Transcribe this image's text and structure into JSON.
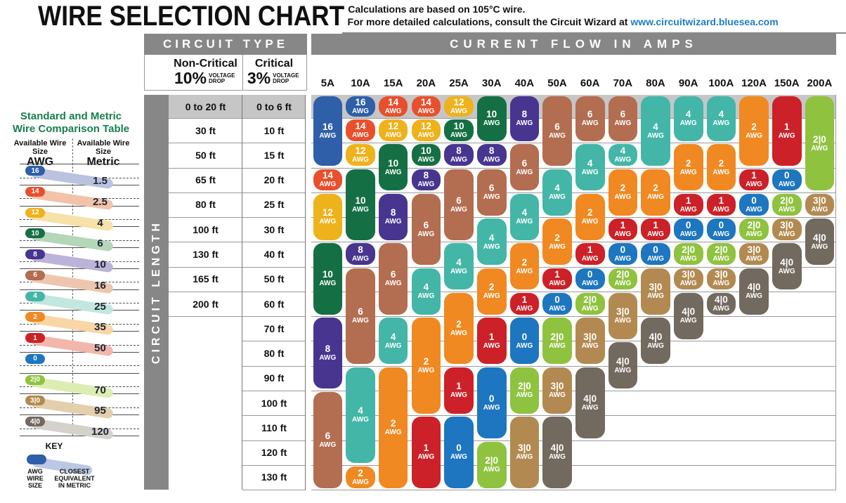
{
  "header": {
    "title": "WIRE SELECTION CHART",
    "bullet": "▪",
    "note_line1": "Calculations are based on 105°C wire.",
    "note_line2_prefix": "For more detailed calculations, consult the Circuit Wizard at ",
    "note_link": "www.circuitwizard.bluesea.com"
  },
  "sidebar": {
    "title_line1": "Standard and Metric",
    "title_line2": "Wire Comparison Table",
    "col1_header": "Available Wire Size",
    "col1_unit": "AWG",
    "col2_header": "Available Wire Size",
    "col2_unit": "Metric",
    "rows": [
      {
        "awg": "16",
        "metric": "1.5",
        "color": "#2e5fa8",
        "swoosh": "#b9c3e0"
      },
      {
        "awg": "14",
        "metric": "2.5",
        "color": "#e8502d",
        "swoosh": "#f3c3a9"
      },
      {
        "awg": "12",
        "metric": "4",
        "color": "#eeb21c",
        "swoosh": "#f6e2a9"
      },
      {
        "awg": "10",
        "metric": "6",
        "color": "#156f44",
        "swoosh": "#b5d6b9"
      },
      {
        "awg": "8",
        "metric": "10",
        "color": "#473590",
        "swoosh": "#bcb3d8"
      },
      {
        "awg": "6",
        "metric": "16",
        "color": "#b36d50",
        "swoosh": "#eec6ae"
      },
      {
        "awg": "4",
        "metric": "25",
        "color": "#43b6a8",
        "swoosh": "#c3e6de"
      },
      {
        "awg": "2",
        "metric": "35",
        "color": "#f08921",
        "swoosh": "#f8d6a6"
      },
      {
        "awg": "1",
        "metric": "50",
        "color": "#cc2128",
        "swoosh": "#f1b7ab"
      },
      {
        "awg": "0",
        "metric": "",
        "color": "#1d76bf",
        "swoosh": ""
      },
      {
        "awg": "2|0",
        "metric": "70",
        "color": "#8fc23f",
        "swoosh": "#ddedb2"
      },
      {
        "awg": "3|0",
        "metric": "95",
        "color": "#b28a51",
        "swoosh": "#e4cfad"
      },
      {
        "awg": "4|0",
        "metric": "120",
        "color": "#72695f",
        "swoosh": "#d5d1cb"
      }
    ],
    "key": {
      "title": "KEY",
      "pill_color": "#2e5fa8",
      "swoosh_color": "#bcc7e3",
      "label1": "AWG WIRE SIZE",
      "label2": "CLOSEST EQUIVALENT IN METRIC"
    }
  },
  "table": {
    "circuit_type_header": "CIRCUIT TYPE",
    "current_flow_header": "CURRENT FLOW IN AMPS",
    "circuit_length_label": "CIRCUIT LENGTH",
    "non_critical_title": "Non-Critical",
    "non_critical_pct": "10%",
    "critical_title": "Critical",
    "critical_pct": "3%",
    "voltage_drop": "VOLTAGE DROP"
  },
  "awg_colors": {
    "16": "#2e5fa8",
    "14": "#e8502d",
    "12": "#eeb21c",
    "10": "#156f44",
    "8": "#473590",
    "6": "#b36d50",
    "4": "#43b6a8",
    "2": "#f08921",
    "1": "#cc2128",
    "0": "#1d76bf",
    "2|0": "#8fc23f",
    "3|0": "#b28a51",
    "4|0": "#72695f"
  },
  "chart_data": {
    "type": "table",
    "title": "Wire Selection Chart",
    "x_axis_label": "Current Flow in Amps",
    "y_axis_label": "Circuit Length",
    "columns": [
      "5A",
      "10A",
      "15A",
      "20A",
      "25A",
      "30A",
      "40A",
      "50A",
      "60A",
      "70A",
      "80A",
      "90A",
      "100A",
      "120A",
      "150A",
      "200A"
    ],
    "row_labels": [
      {
        "non_critical_10pct": "0 to 20 ft",
        "critical_3pct": "0 to 6 ft"
      },
      {
        "non_critical_10pct": "30 ft",
        "critical_3pct": "10 ft"
      },
      {
        "non_critical_10pct": "50 ft",
        "critical_3pct": "15 ft"
      },
      {
        "non_critical_10pct": "65 ft",
        "critical_3pct": "20 ft"
      },
      {
        "non_critical_10pct": "80 ft",
        "critical_3pct": "25 ft"
      },
      {
        "non_critical_10pct": "100 ft",
        "critical_3pct": "30 ft"
      },
      {
        "non_critical_10pct": "130 ft",
        "critical_3pct": "40 ft"
      },
      {
        "non_critical_10pct": "165 ft",
        "critical_3pct": "50 ft"
      },
      {
        "non_critical_10pct": "200 ft",
        "critical_3pct": "60 ft"
      },
      {
        "non_critical_10pct": "",
        "critical_3pct": "70 ft"
      },
      {
        "non_critical_10pct": "",
        "critical_3pct": "80 ft"
      },
      {
        "non_critical_10pct": "",
        "critical_3pct": "90 ft"
      },
      {
        "non_critical_10pct": "",
        "critical_3pct": "100 ft"
      },
      {
        "non_critical_10pct": "",
        "critical_3pct": "110 ft"
      },
      {
        "non_critical_10pct": "",
        "critical_3pct": "120 ft"
      },
      {
        "non_critical_10pct": "",
        "critical_3pct": "130 ft"
      }
    ],
    "cells": {
      "5A": [
        [
          "16",
          1,
          3
        ],
        [
          "14",
          4,
          4
        ],
        [
          "12",
          5,
          6
        ],
        [
          "10",
          7,
          9
        ],
        [
          "8",
          10,
          12
        ],
        [
          "6",
          13,
          16
        ]
      ],
      "10A": [
        [
          "16",
          1,
          1
        ],
        [
          "14",
          2,
          2
        ],
        [
          "12",
          3,
          3
        ],
        [
          "10",
          4,
          6
        ],
        [
          "8",
          7,
          7
        ],
        [
          "6",
          8,
          11
        ],
        [
          "4",
          12,
          15
        ],
        [
          "2",
          16,
          16
        ]
      ],
      "15A": [
        [
          "14",
          1,
          1
        ],
        [
          "12",
          2,
          2
        ],
        [
          "10",
          3,
          4
        ],
        [
          "8",
          5,
          6
        ],
        [
          "6",
          7,
          9
        ],
        [
          "4",
          10,
          11
        ],
        [
          "2",
          12,
          16
        ]
      ],
      "20A": [
        [
          "14",
          1,
          1
        ],
        [
          "12",
          2,
          2
        ],
        [
          "10",
          3,
          3
        ],
        [
          "8",
          4,
          4
        ],
        [
          "6",
          5,
          7
        ],
        [
          "4",
          8,
          9
        ],
        [
          "2",
          10,
          13
        ],
        [
          "1",
          14,
          16
        ]
      ],
      "25A": [
        [
          "12",
          1,
          1
        ],
        [
          "10",
          2,
          2
        ],
        [
          "8",
          3,
          3
        ],
        [
          "6",
          4,
          6
        ],
        [
          "4",
          7,
          8
        ],
        [
          "2",
          9,
          11
        ],
        [
          "1",
          12,
          13
        ],
        [
          "0",
          14,
          16
        ]
      ],
      "30A": [
        [
          "10",
          1,
          2
        ],
        [
          "8",
          3,
          3
        ],
        [
          "6",
          4,
          5
        ],
        [
          "4",
          6,
          7
        ],
        [
          "2",
          8,
          9
        ],
        [
          "1",
          10,
          11
        ],
        [
          "0",
          12,
          14
        ],
        [
          "2|0",
          15,
          16
        ]
      ],
      "40A": [
        [
          "8",
          1,
          2
        ],
        [
          "6",
          3,
          4
        ],
        [
          "4",
          5,
          6
        ],
        [
          "2",
          7,
          8
        ],
        [
          "1",
          9,
          9
        ],
        [
          "0",
          10,
          11
        ],
        [
          "2|0",
          12,
          13
        ],
        [
          "3|0",
          14,
          16
        ]
      ],
      "50A": [
        [
          "6",
          1,
          3
        ],
        [
          "4",
          4,
          5
        ],
        [
          "2",
          6,
          7
        ],
        [
          "1",
          8,
          8
        ],
        [
          "0",
          9,
          9
        ],
        [
          "2|0",
          10,
          11
        ],
        [
          "3|0",
          12,
          13
        ],
        [
          "4|0",
          14,
          16
        ]
      ],
      "60A": [
        [
          "6",
          1,
          2
        ],
        [
          "4",
          3,
          4
        ],
        [
          "2",
          5,
          6
        ],
        [
          "1",
          7,
          7
        ],
        [
          "0",
          8,
          8
        ],
        [
          "2|0",
          9,
          9
        ],
        [
          "3|0",
          10,
          11
        ],
        [
          "4|0",
          12,
          14
        ]
      ],
      "70A": [
        [
          "6",
          1,
          2
        ],
        [
          "4",
          3,
          3
        ],
        [
          "2",
          4,
          5
        ],
        [
          "1",
          6,
          6
        ],
        [
          "0",
          7,
          7
        ],
        [
          "2|0",
          8,
          8
        ],
        [
          "3|0",
          9,
          10
        ],
        [
          "4|0",
          11,
          12
        ]
      ],
      "80A": [
        [
          "4",
          1,
          3
        ],
        [
          "2",
          4,
          5
        ],
        [
          "1",
          6,
          6
        ],
        [
          "0",
          7,
          7
        ],
        [
          "3|0",
          8,
          9
        ],
        [
          "4|0",
          10,
          11
        ]
      ],
      "90A": [
        [
          "4",
          1,
          2
        ],
        [
          "2",
          3,
          4
        ],
        [
          "1",
          5,
          5
        ],
        [
          "0",
          6,
          6
        ],
        [
          "2|0",
          7,
          7
        ],
        [
          "3|0",
          8,
          8
        ],
        [
          "4|0",
          9,
          10
        ]
      ],
      "100A": [
        [
          "4",
          1,
          2
        ],
        [
          "2",
          3,
          4
        ],
        [
          "1",
          5,
          5
        ],
        [
          "0",
          6,
          6
        ],
        [
          "2|0",
          7,
          7
        ],
        [
          "3|0",
          8,
          8
        ],
        [
          "4|0",
          9,
          9
        ]
      ],
      "120A": [
        [
          "2",
          1,
          3
        ],
        [
          "1",
          4,
          4
        ],
        [
          "0",
          5,
          5
        ],
        [
          "2|0",
          6,
          6
        ],
        [
          "3|0",
          7,
          7
        ],
        [
          "4|0",
          8,
          9
        ]
      ],
      "150A": [
        [
          "1",
          1,
          3
        ],
        [
          "0",
          4,
          4
        ],
        [
          "2|0",
          5,
          5
        ],
        [
          "3|0",
          6,
          6
        ],
        [
          "4|0",
          7,
          8
        ]
      ],
      "200A": [
        [
          "2|0",
          1,
          4
        ],
        [
          "3|0",
          5,
          5
        ],
        [
          "4|0",
          6,
          7
        ]
      ]
    },
    "unit_suffix": "AWG",
    "legend": {
      "pill": "AWG wire size",
      "grid": "rows = circuit length, columns = current flow"
    }
  }
}
